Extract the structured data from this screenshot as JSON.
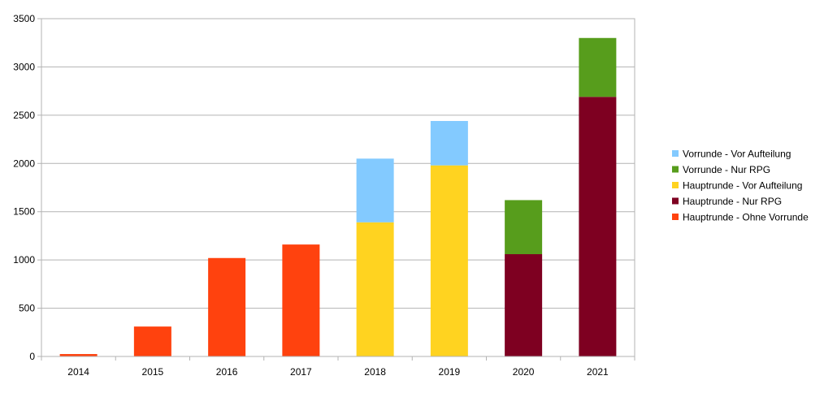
{
  "chart_data": {
    "type": "bar",
    "stacked": true,
    "title": "",
    "xlabel": "",
    "ylabel": "",
    "categories": [
      "2014",
      "2015",
      "2016",
      "2017",
      "2018",
      "2019",
      "2020",
      "2021"
    ],
    "ylim": [
      0,
      3500
    ],
    "yticks": [
      0,
      500,
      1000,
      1500,
      2000,
      2500,
      3000,
      3500
    ],
    "grid": "horizontal",
    "legend_position": "right",
    "series": [
      {
        "name": "Hauptrunde - Ohne Vorrunde",
        "color": "#ff420e",
        "values": [
          25,
          310,
          1020,
          1160,
          0,
          0,
          0,
          0
        ]
      },
      {
        "name": "Hauptrunde - Nur RPG",
        "color": "#7e0021",
        "values": [
          0,
          0,
          0,
          0,
          0,
          0,
          1060,
          2690
        ]
      },
      {
        "name": "Hauptrunde - Vor Aufteilung",
        "color": "#ffd320",
        "values": [
          0,
          0,
          0,
          0,
          1390,
          1980,
          0,
          0
        ]
      },
      {
        "name": "Vorrunde - Nur RPG",
        "color": "#579d1c",
        "values": [
          0,
          0,
          0,
          0,
          0,
          0,
          560,
          610
        ]
      },
      {
        "name": "Vorrunde - Vor Aufteilung",
        "color": "#83caff",
        "values": [
          0,
          0,
          0,
          0,
          660,
          460,
          0,
          0
        ]
      }
    ],
    "legend_order": [
      "Vorrunde - Vor Aufteilung",
      "Vorrunde - Nur RPG",
      "Hauptrunde - Vor Aufteilung",
      "Hauptrunde - Nur RPG",
      "Hauptrunde - Ohne Vorrunde"
    ]
  }
}
